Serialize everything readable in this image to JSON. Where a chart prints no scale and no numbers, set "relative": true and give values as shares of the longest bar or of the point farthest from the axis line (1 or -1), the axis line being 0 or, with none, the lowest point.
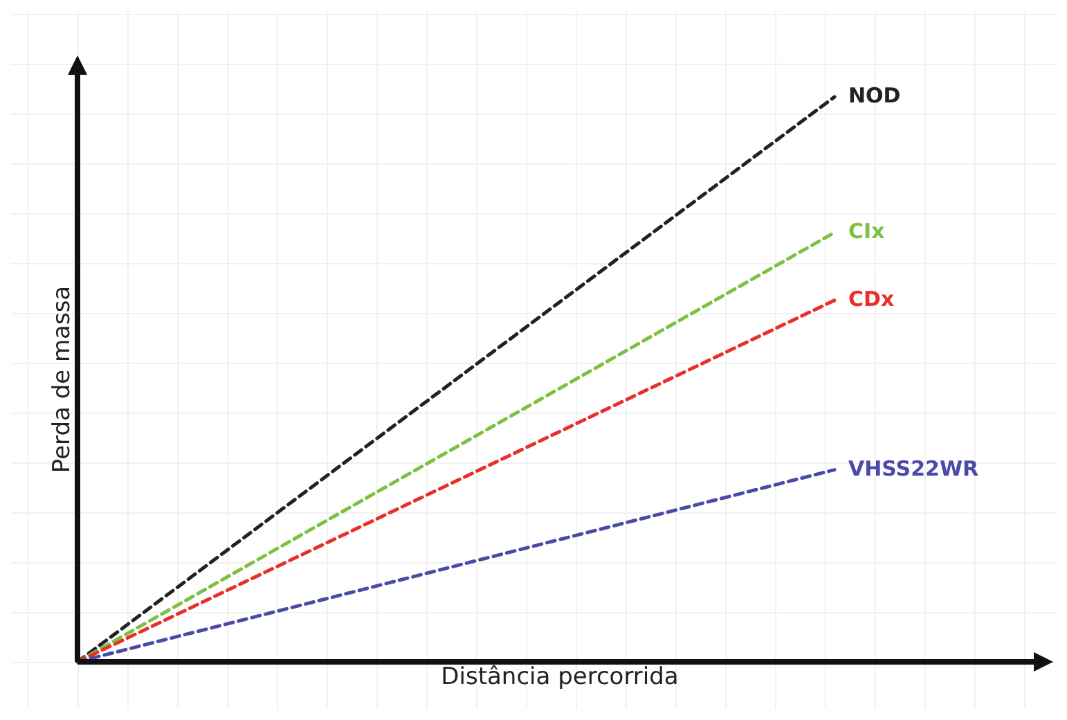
{
  "chart_data": {
    "type": "line",
    "relative": true,
    "xlabel": "Distância percorrida",
    "ylabel": "Perda de massa",
    "categories": [
      null,
      null
    ],
    "legend": false,
    "line_style": "dashed",
    "marker": "none",
    "series": [
      {
        "name": "NOD",
        "color": "#222222",
        "values": [
          0,
          1
        ]
      },
      {
        "name": "CIx",
        "color": "#7cc142",
        "values": [
          0,
          0.76
        ]
      },
      {
        "name": "CDx",
        "color": "#e8302a",
        "values": [
          0,
          0.64
        ]
      },
      {
        "name": "VHSS22WR",
        "color": "#4a4aa8",
        "values": [
          0,
          0.34
        ]
      }
    ]
  }
}
